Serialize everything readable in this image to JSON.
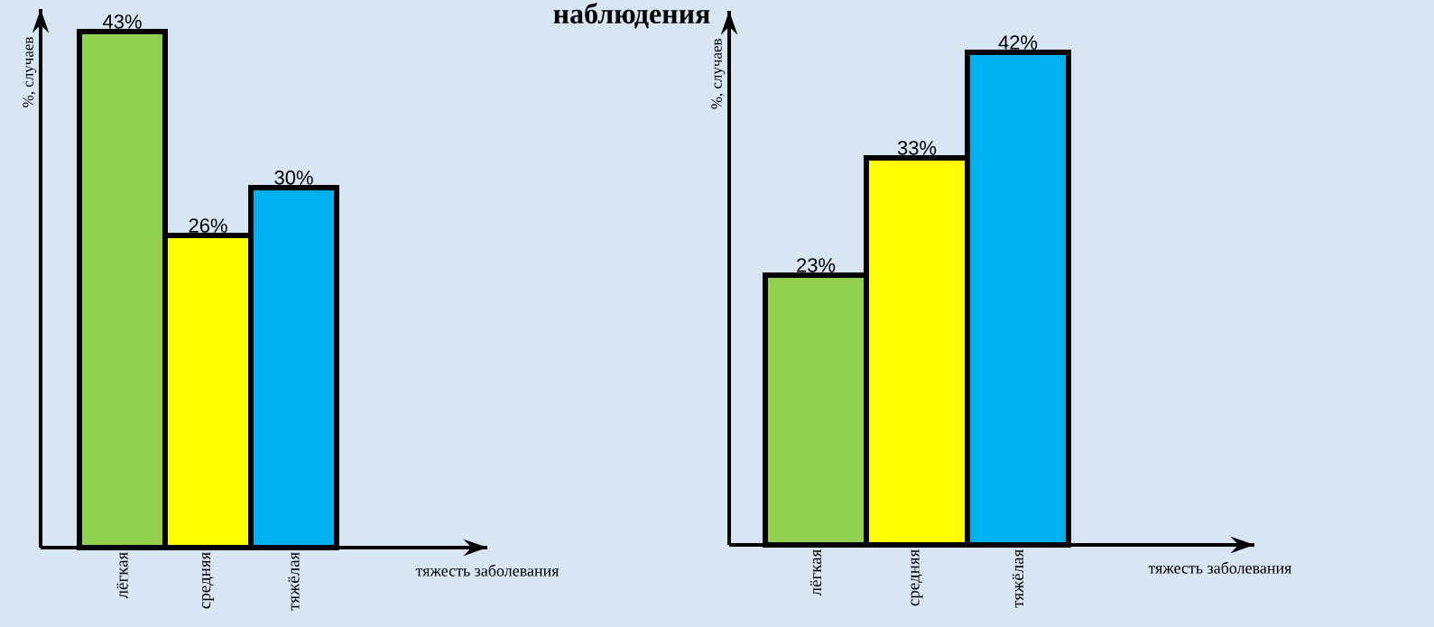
{
  "chart_data": [
    {
      "type": "bar",
      "xlabel": "тяжесть заболевания",
      "ylabel": "%, случаев",
      "categories": [
        "лёгкая",
        "средняя",
        "тяжёлая"
      ],
      "values": [
        43,
        26,
        30
      ],
      "colors": [
        "#92d050",
        "#ffff00",
        "#00b0f0"
      ],
      "value_labels": [
        "43%",
        "26%",
        "30%"
      ]
    },
    {
      "type": "bar",
      "title": "наблюдения",
      "xlabel": "тяжесть заболевания",
      "ylabel": "%, случаев",
      "categories": [
        "лёгкая",
        "средняя",
        "тяжёлая"
      ],
      "values": [
        23,
        33,
        42
      ],
      "colors": [
        "#92d050",
        "#ffff00",
        "#00b0f0"
      ],
      "value_labels": [
        "23%",
        "33%",
        "42%"
      ]
    }
  ]
}
